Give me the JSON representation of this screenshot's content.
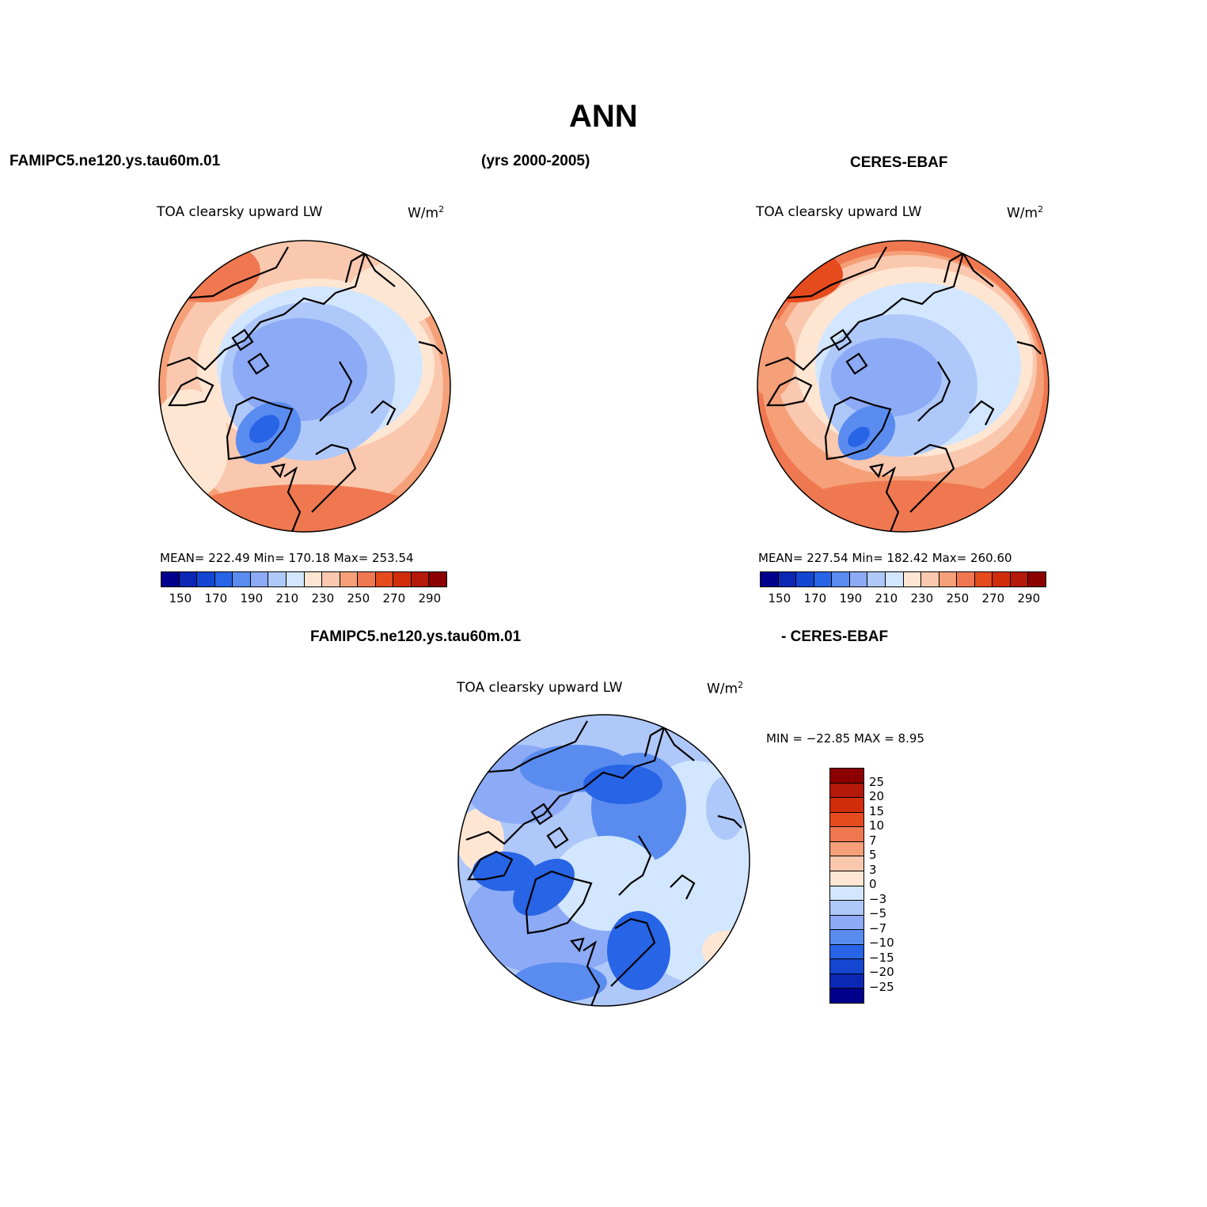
{
  "title": "ANN",
  "left_header": "FAMIPC5.ne120.ys.tau60m.01",
  "center_header": "(yrs 2000-2005)",
  "right_header": "CERES-EBAF",
  "diff_header_left": "FAMIPC5.ne120.ys.tau60m.01",
  "diff_header_right": "- CERES-EBAF",
  "panels": [
    {
      "variable": "TOA clearsky upward LW",
      "units_base": "W/m",
      "units_exp": "2",
      "stats": "MEAN= 222.49   Min= 170.18   Max= 253.54"
    },
    {
      "variable": "TOA clearsky upward LW",
      "units_base": "W/m",
      "units_exp": "2",
      "stats": "MEAN= 227.54   Min= 182.42   Max= 260.60"
    },
    {
      "variable": "TOA clearsky upward LW",
      "units_base": "W/m",
      "units_exp": "2",
      "stats": "MIN = −22.85 MAX =    8.95"
    }
  ],
  "abs_colorbar": {
    "colors": [
      "#00008c",
      "#0a28b4",
      "#1446d2",
      "#2864e6",
      "#5a8cf0",
      "#8caaf5",
      "#afc8fa",
      "#d2e6ff",
      "#ffe6d2",
      "#fac8af",
      "#f5a078",
      "#f07850",
      "#e64b1e",
      "#d22d0a",
      "#b4190a",
      "#8c0000"
    ],
    "labels": [
      "150",
      "170",
      "190",
      "210",
      "230",
      "250",
      "270",
      "290"
    ]
  },
  "diff_colorbar": {
    "colors": [
      "#8c0000",
      "#b4190a",
      "#d22d0a",
      "#e64b1e",
      "#f07850",
      "#f5a078",
      "#fac8af",
      "#ffe6d2",
      "#d2e6ff",
      "#afc8fa",
      "#8caaf5",
      "#5a8cf0",
      "#2864e6",
      "#1446d2",
      "#0a28b4",
      "#00008c"
    ],
    "labels": [
      "25",
      "20",
      "15",
      "10",
      "7",
      "5",
      "3",
      "0",
      "−3",
      "−5",
      "−7",
      "−10",
      "−15",
      "−20",
      "−25"
    ]
  }
}
